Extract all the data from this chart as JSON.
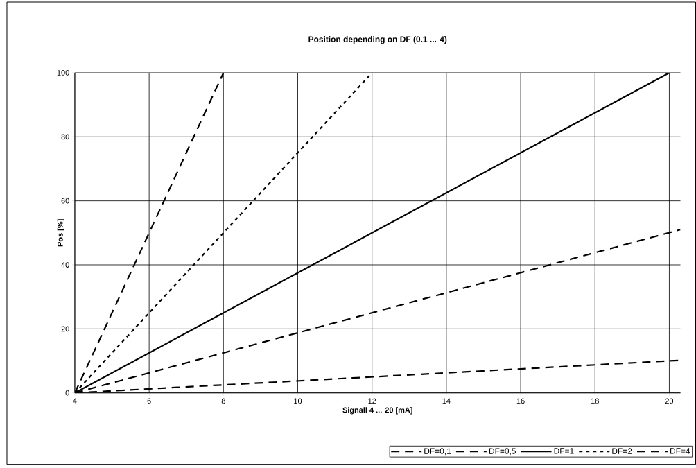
{
  "chart_data": {
    "type": "line",
    "title": "Position depending on DF (0.1 ... 4)",
    "xlabel": "Signall 4 ... 20 [mA]",
    "ylabel": "Pos [%]",
    "xlim": [
      4,
      20.3
    ],
    "ylim": [
      0,
      100
    ],
    "xticks": [
      4,
      6,
      8,
      10,
      12,
      14,
      16,
      18,
      20
    ],
    "yticks": [
      0,
      20,
      40,
      60,
      80,
      100
    ],
    "grid": true,
    "legend": "bottom",
    "marker": "none",
    "series": [
      {
        "name": "DF=0,1",
        "color": "#000000",
        "line_style": "dashed",
        "x": [
          4,
          20.3
        ],
        "values": [
          0,
          10.2
        ]
      },
      {
        "name": "DF=0,5",
        "color": "#000000",
        "line_style": "dashed",
        "x": [
          4,
          20.3
        ],
        "values": [
          0,
          51
        ]
      },
      {
        "name": "DF=1",
        "color": "#000000",
        "line_style": "solid",
        "x": [
          4,
          20
        ],
        "values": [
          0,
          100
        ]
      },
      {
        "name": "DF=2",
        "color": "#000000",
        "line_style": "dotted",
        "x": [
          4,
          12,
          20.3
        ],
        "values": [
          0,
          100,
          100
        ]
      },
      {
        "name": "DF=4",
        "color": "#000000",
        "line_style": "dashed",
        "x": [
          4,
          8,
          20.3
        ],
        "values": [
          0,
          100,
          100
        ]
      }
    ]
  }
}
